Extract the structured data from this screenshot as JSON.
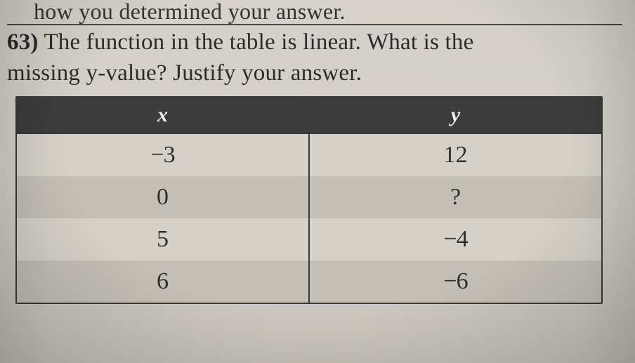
{
  "fragment_above": "how you determined your answer.",
  "question": {
    "number": "63)",
    "text_line1": " The function in the table is linear. What is the",
    "text_line2": "missing y-value? Justify your answer."
  },
  "table": {
    "headers": {
      "x": "x",
      "y": "y"
    },
    "rows": [
      {
        "x": "−3",
        "y": "12"
      },
      {
        "x": "0",
        "y": "?"
      },
      {
        "x": "5",
        "y": "−4"
      },
      {
        "x": "6",
        "y": "−6"
      }
    ],
    "style": {
      "header_bg": "#3c3c3c",
      "header_fg": "#efefef",
      "row_bg": "#d5d1c9",
      "row_alt_bg": "#c3bfb7",
      "border_color": "#3a3a3a",
      "header_fontsize": 30,
      "cell_fontsize": 34
    }
  }
}
